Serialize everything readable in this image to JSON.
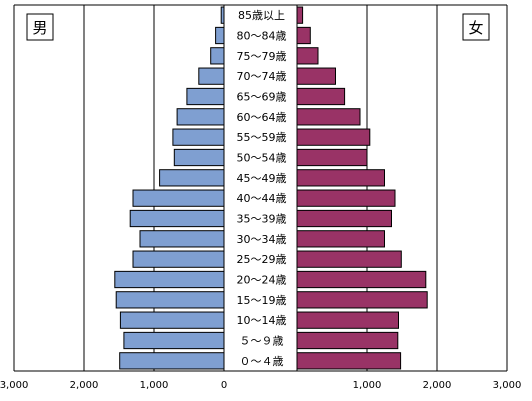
{
  "chart_data": {
    "type": "bar",
    "orientation": "horizontal",
    "layout": "population-pyramid",
    "xlim": [
      0,
      3000
    ],
    "ticks": [
      "3,000",
      "2,000",
      "1,000",
      "0",
      "1,000",
      "2,000",
      "3,000"
    ],
    "categories": [
      "85歳以上",
      "80～84歳",
      "75～79歳",
      "70～74歳",
      "65～69歳",
      "60～64歳",
      "55～59歳",
      "50～54歳",
      "45～49歳",
      "40～44歳",
      "35～39歳",
      "30～34歳",
      "25～29歳",
      "20～24歳",
      "15～19歳",
      "10～14歳",
      "５～９歳",
      "０～４歳"
    ],
    "series": [
      {
        "name": "男",
        "side": "left",
        "color": "#7f9fd1",
        "values": [
          40,
          120,
          190,
          360,
          530,
          670,
          730,
          710,
          920,
          1300,
          1340,
          1200,
          1300,
          1560,
          1540,
          1480,
          1430,
          1490
        ]
      },
      {
        "name": "女",
        "side": "right",
        "color": "#993366",
        "values": [
          80,
          190,
          300,
          550,
          680,
          900,
          1040,
          1000,
          1250,
          1400,
          1350,
          1250,
          1490,
          1840,
          1860,
          1450,
          1440,
          1480
        ]
      }
    ],
    "grid": "vertical",
    "legend": "corner-labels"
  }
}
